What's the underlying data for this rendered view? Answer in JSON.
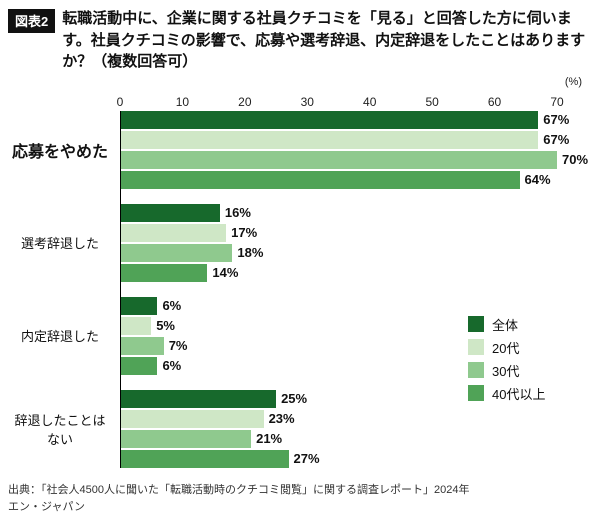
{
  "header": {
    "badge": "図表2",
    "title": "転職活動中に、企業に関する社員クチコミを「見る」と回答した方に伺います。社員クチコミの影響で、応募や選考辞退、内定辞退をしたことはありますか？（複数回答可）"
  },
  "chart_data": {
    "type": "bar",
    "orientation": "horizontal",
    "unit": "%",
    "title": "社員クチコミの影響で、応募や選考辞退、内定辞退をしたことはありますか？（複数回答可）",
    "axis": {
      "min": 0,
      "max": 70,
      "ticks": [
        0,
        10,
        20,
        30,
        40,
        50,
        60,
        70
      ],
      "unit_label": "(%)"
    },
    "grid": false,
    "legend_position": "right-middle",
    "categories": [
      "応募をやめた",
      "選考辞退した",
      "内定辞退した",
      "辞退したことはない"
    ],
    "series": [
      {
        "name": "全体",
        "color": "#17692c",
        "values": [
          67,
          16,
          6,
          25
        ]
      },
      {
        "name": "20代",
        "color": "#cfe7c6",
        "values": [
          67,
          17,
          5,
          23
        ]
      },
      {
        "name": "30代",
        "color": "#8fc98e",
        "values": [
          70,
          18,
          7,
          21
        ]
      },
      {
        "name": "40代以上",
        "color": "#50a357",
        "values": [
          64,
          14,
          6,
          27
        ]
      }
    ]
  },
  "footer": {
    "source_line1": "出典：「社会人4500人に聞いた「転職活動時のクチコミ閲覧」に関する調査レポート」2024年",
    "source_line2": "エン・ジャパン"
  }
}
